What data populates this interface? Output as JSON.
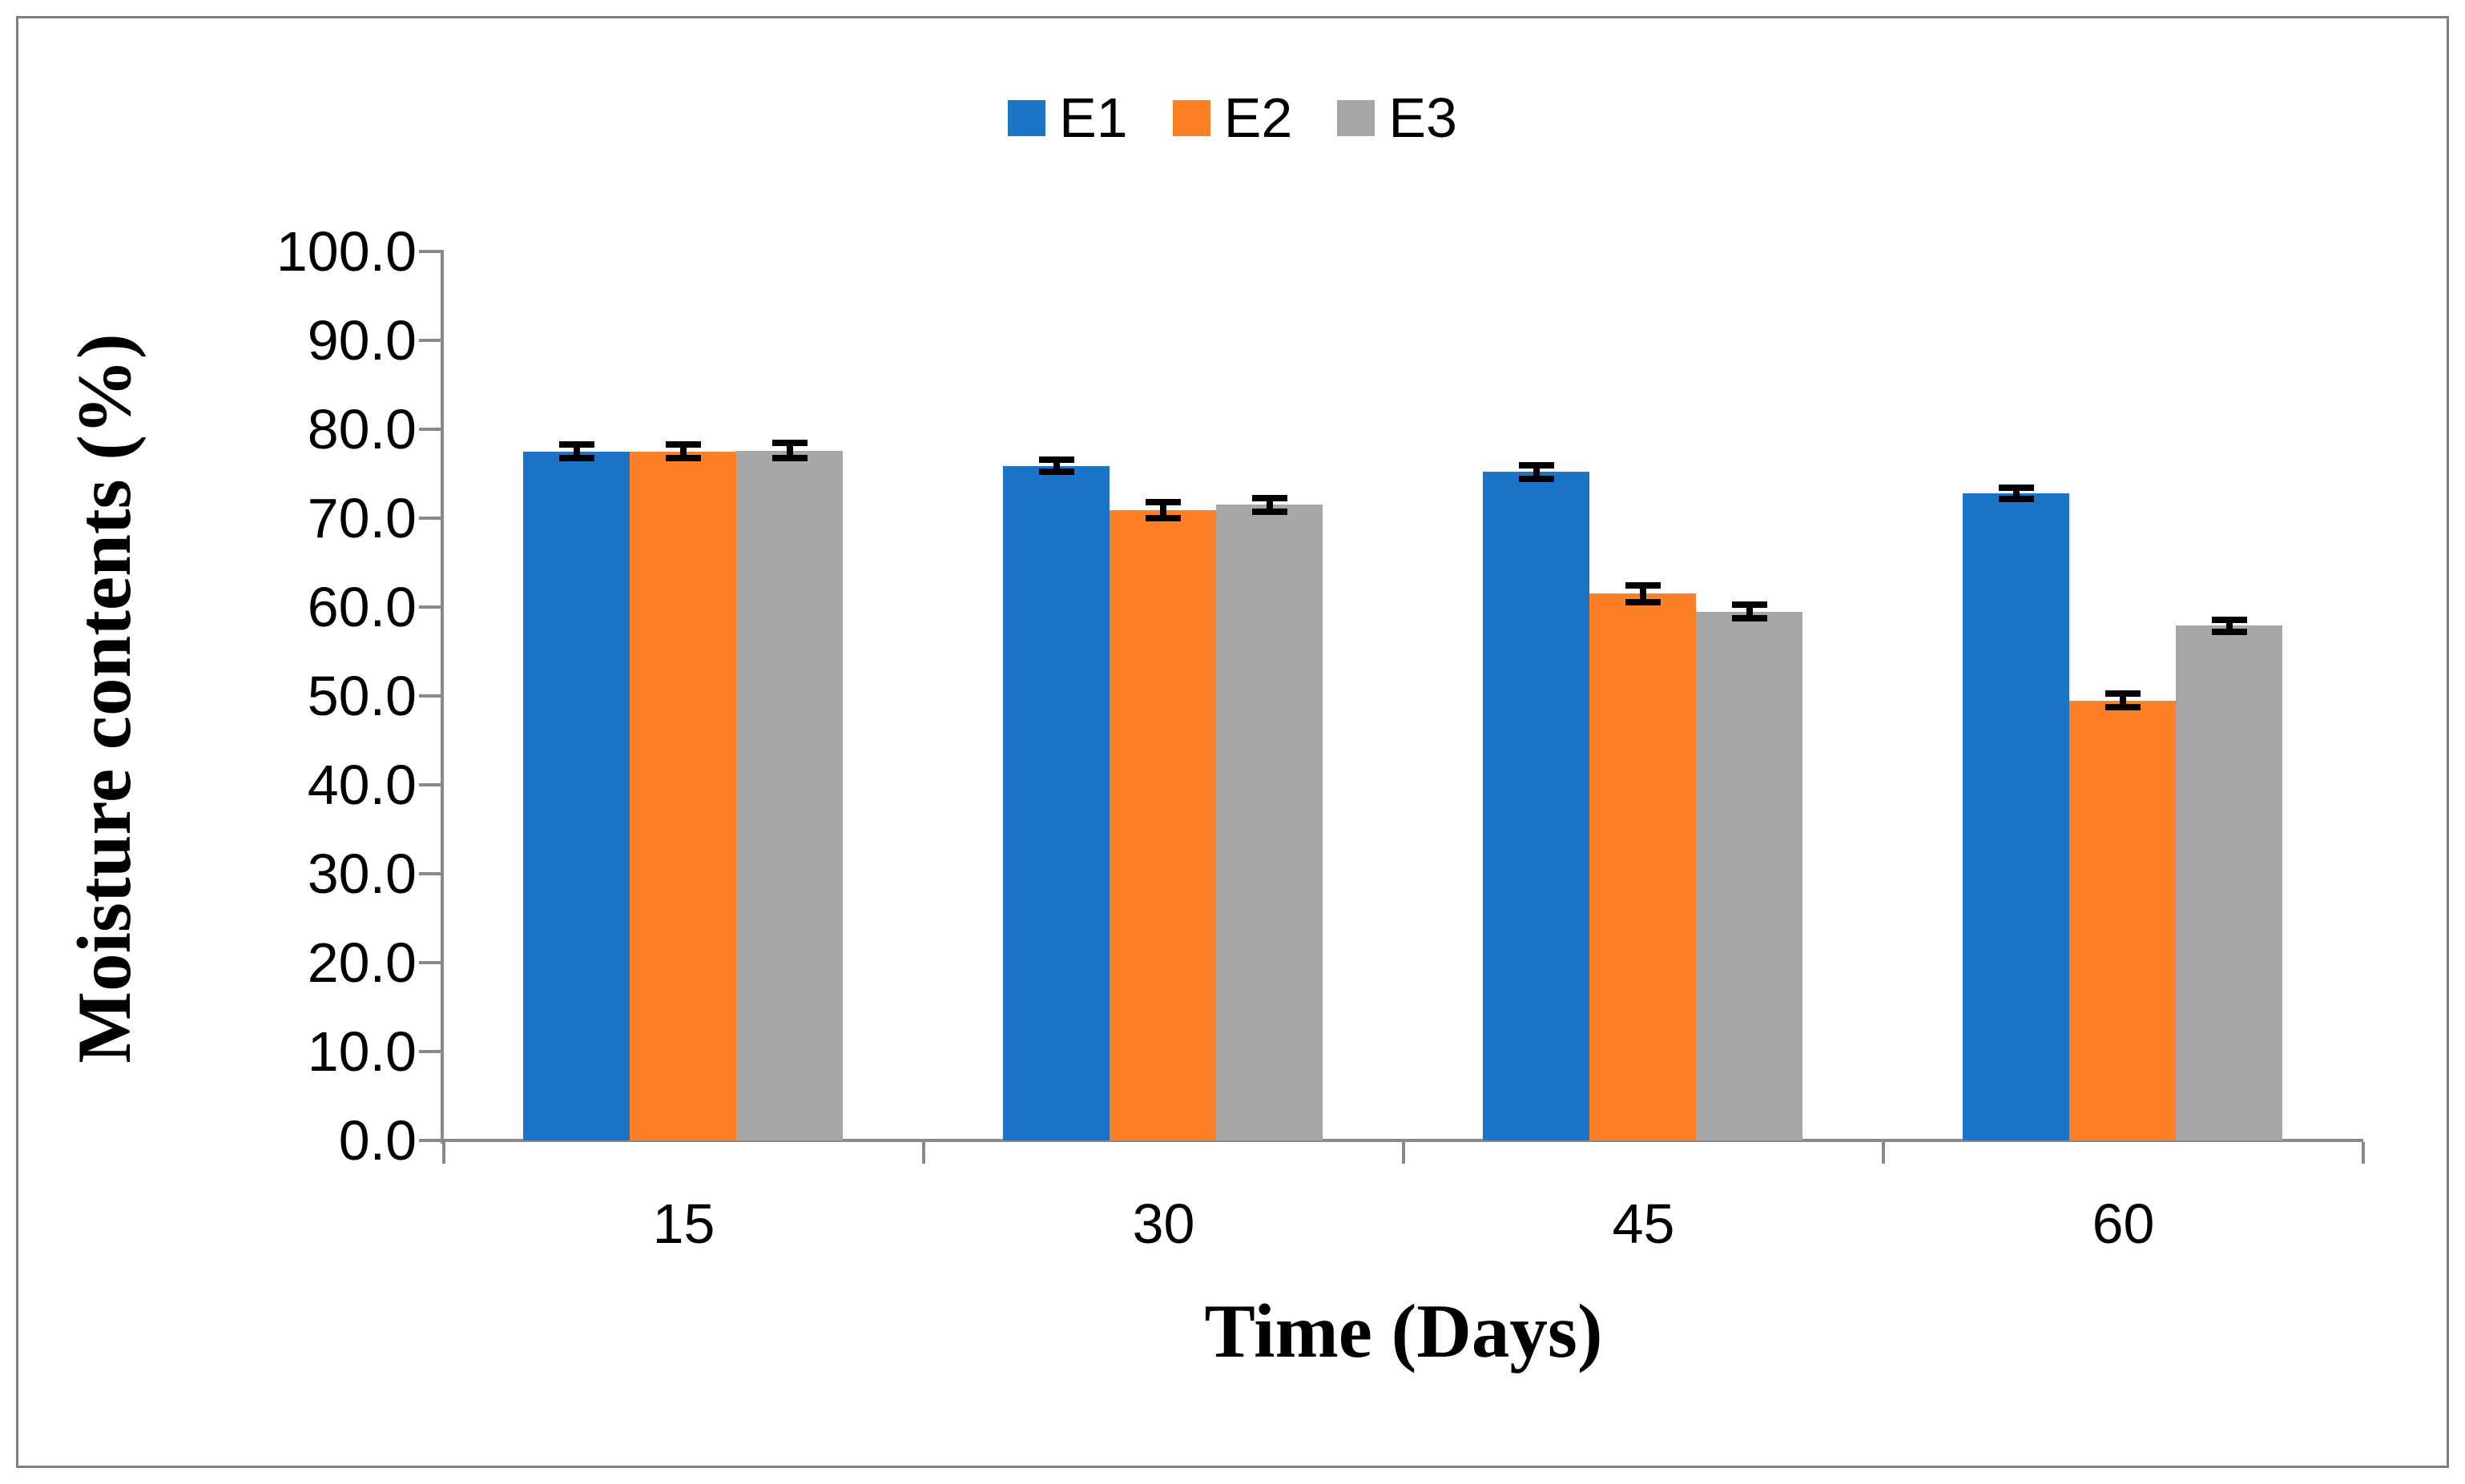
{
  "chart_data": {
    "type": "bar",
    "title": "",
    "xlabel": "Time (Days)",
    "ylabel": "Moisture contents (%)",
    "categories": [
      "15",
      "30",
      "45",
      "60"
    ],
    "series": [
      {
        "name": "E1",
        "color": "#1B74C7",
        "values": [
          77.5,
          75.9,
          75.2,
          72.8
        ],
        "errors": [
          0.4,
          0.3,
          0.4,
          0.3
        ]
      },
      {
        "name": "E2",
        "color": "#FF7F27",
        "values": [
          77.5,
          70.9,
          61.5,
          49.5
        ],
        "errors": [
          0.4,
          0.5,
          0.6,
          0.4
        ]
      },
      {
        "name": "E3",
        "color": "#A6A6A6",
        "values": [
          77.6,
          71.5,
          59.5,
          57.9
        ],
        "errors": [
          0.5,
          0.4,
          0.4,
          0.3
        ]
      }
    ],
    "ylim": [
      0,
      100
    ],
    "ytick_step": 10,
    "y_tick_labels": [
      "0.0",
      "10.0",
      "20.0",
      "30.0",
      "40.0",
      "50.0",
      "60.0",
      "70.0",
      "80.0",
      "90.0",
      "100.0"
    ],
    "grid": false,
    "error_bars": true,
    "legend_position": "top-center"
  },
  "colors": {
    "background": "#FFFFFF",
    "axis": "#898989",
    "outer_border": "#7F7F7F",
    "error_bar": "#000000",
    "text": "#000000"
  }
}
